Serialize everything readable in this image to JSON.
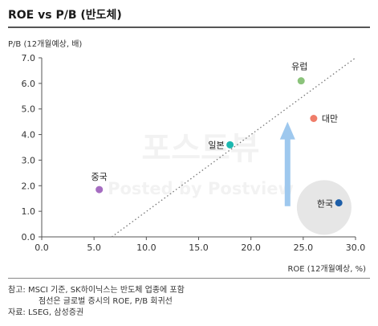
{
  "title": "ROE vs P/B (반도체)",
  "notes": {
    "line1": "참고: MSCI 기준, SK하이닉스는 반도체 업종에 포함",
    "line2": "점선은 글로벌 증시의 ROE, P/B 회귀선",
    "line3": "자료: LSEG, 삼성증권"
  },
  "watermark": {
    "main": "포스트뷰",
    "sub": "Posted by Postview"
  },
  "chart_data": {
    "type": "scatter",
    "title": "ROE vs P/B (반도체)",
    "xlabel": "ROE (12개월예상, %)",
    "ylabel": "P/B (12개월예상, 배)",
    "xlim": [
      0,
      30
    ],
    "ylim": [
      0,
      7
    ],
    "xticks": [
      "0.0",
      "5.0",
      "10.0",
      "15.0",
      "20.0",
      "25.0",
      "30.0"
    ],
    "yticks": [
      "0.0",
      "1.0",
      "2.0",
      "3.0",
      "4.0",
      "5.0",
      "6.0",
      "7.0"
    ],
    "grid": false,
    "points": [
      {
        "label": "중국",
        "x": 5.5,
        "y": 1.85,
        "color": "#a56cc1"
      },
      {
        "label": "일본",
        "x": 18.0,
        "y": 3.6,
        "color": "#1cb8b0"
      },
      {
        "label": "유럽",
        "x": 24.8,
        "y": 6.1,
        "color": "#8bc37b"
      },
      {
        "label": "대만",
        "x": 26.0,
        "y": 4.63,
        "color": "#ef7d6a"
      },
      {
        "label": "한국",
        "x": 28.4,
        "y": 1.33,
        "color": "#1d5ea8"
      }
    ],
    "regression_line": {
      "x": [
        6.7,
        30.0
      ],
      "y": [
        0.0,
        7.0
      ],
      "style": "dotted",
      "color": "#777777"
    },
    "annotations": {
      "arrow": {
        "x": 23.5,
        "y_from": 1.2,
        "y_to": 4.5,
        "color": "#9ec8ee"
      },
      "highlight_circle": {
        "x": 27.0,
        "y": 1.15,
        "color": "#e6e6e6"
      }
    }
  }
}
